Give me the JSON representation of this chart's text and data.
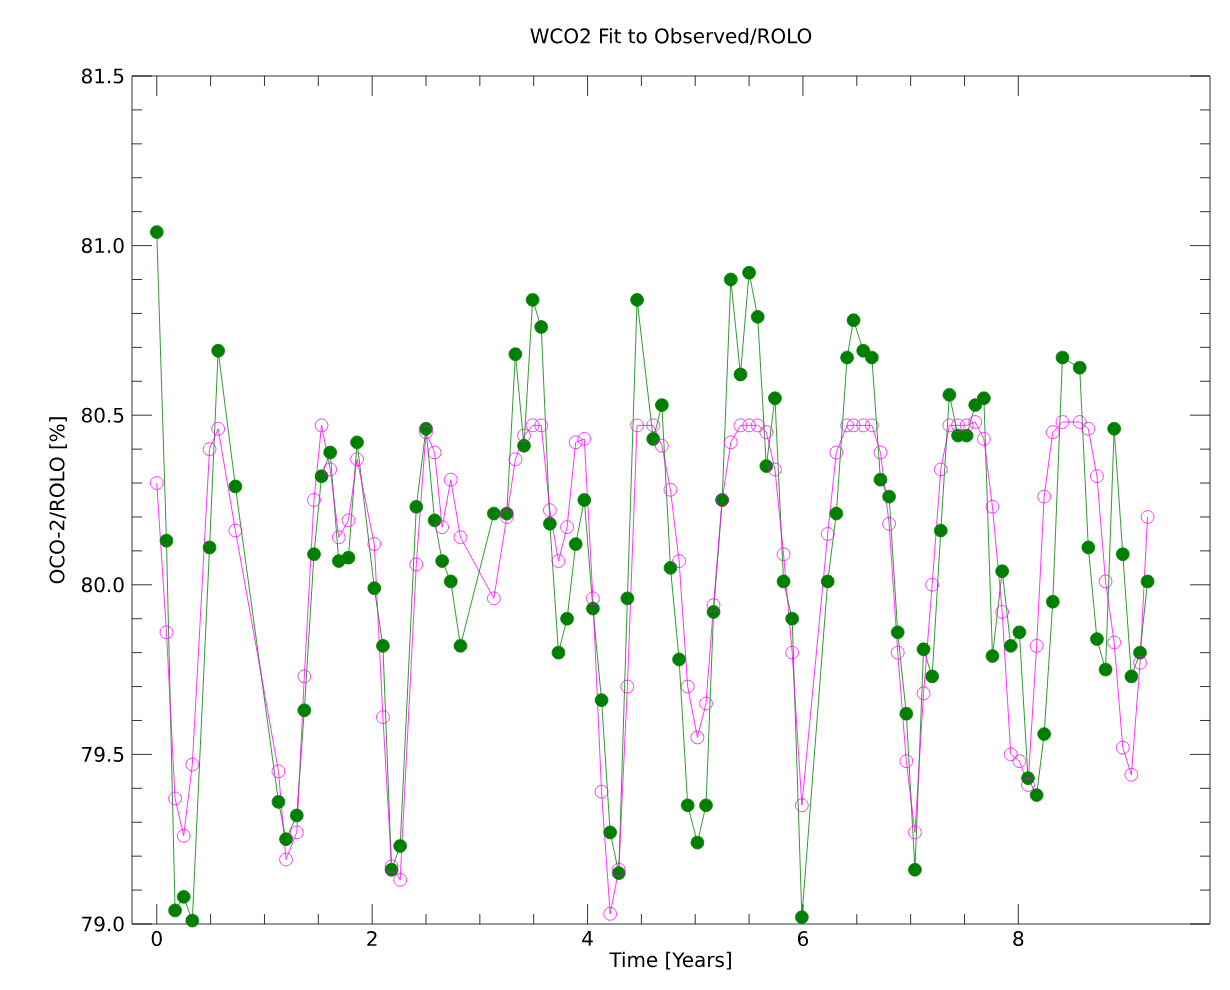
{
  "chart_data": {
    "type": "line",
    "title": "WCO2 Fit to Observed/ROLO",
    "xlabel": "Time [Years]",
    "ylabel": "OCO-2/ROLO [%]",
    "x": [
      0,
      0.09,
      0.17,
      0.25,
      0.33,
      0.49,
      0.57,
      0.73,
      1.13,
      1.2,
      1.3,
      1.37,
      1.46,
      1.53,
      1.61,
      1.69,
      1.78,
      1.86,
      2.02,
      2.1,
      2.18,
      2.26,
      2.41,
      2.5,
      2.58,
      2.65,
      2.73,
      2.82,
      3.13,
      3.25,
      3.33,
      3.41,
      3.49,
      3.57,
      3.65,
      3.73,
      3.81,
      3.89,
      3.97,
      4.05,
      4.13,
      4.21,
      4.29,
      4.37,
      4.46,
      4.61,
      4.69,
      4.77,
      4.85,
      4.93,
      5.02,
      5.1,
      5.17,
      5.25,
      5.33,
      5.42,
      5.5,
      5.58,
      5.66,
      5.74,
      5.82,
      5.9,
      5.99,
      6.23,
      6.31,
      6.41,
      6.47,
      6.56,
      6.64,
      6.72,
      6.8,
      6.88,
      6.96,
      7.04,
      7.12,
      7.2,
      7.28,
      7.36,
      7.44,
      7.52,
      7.6,
      7.68,
      7.76,
      7.85,
      7.93,
      8.01,
      8.09,
      8.17,
      8.24,
      8.32,
      8.41,
      8.57,
      8.65,
      8.73,
      8.81,
      8.89,
      8.97,
      9.05,
      9.13,
      9.2
    ],
    "series": [
      {
        "color": "#007f00",
        "values": [
          81.04,
          80.13,
          79.04,
          79.08,
          79.01,
          80.11,
          80.69,
          80.29,
          79.36,
          79.25,
          79.32,
          79.63,
          80.09,
          80.32,
          80.39,
          80.07,
          80.08,
          80.42,
          79.99,
          79.82,
          79.16,
          79.23,
          80.23,
          80.46,
          80.19,
          80.07,
          80.01,
          79.82,
          80.21,
          80.21,
          80.68,
          80.41,
          80.84,
          80.76,
          80.18,
          79.8,
          79.9,
          80.12,
          80.25,
          79.93,
          79.66,
          79.27,
          79.15,
          79.96,
          80.84,
          80.43,
          80.53,
          80.05,
          79.78,
          79.35,
          79.24,
          79.35,
          79.92,
          80.25,
          80.9,
          80.62,
          80.92,
          80.79,
          80.35,
          80.55,
          80.01,
          79.9,
          79.02,
          80.01,
          80.21,
          80.67,
          80.78,
          80.69,
          80.67,
          80.31,
          80.26,
          79.86,
          79.62,
          79.16,
          79.81,
          79.73,
          80.16,
          80.56,
          80.44,
          80.44,
          80.53,
          80.55,
          79.79,
          80.04,
          79.82,
          79.86,
          79.43,
          79.38,
          79.56,
          79.95,
          80.67,
          80.64,
          80.11,
          79.84,
          79.75,
          80.46,
          80.09,
          79.73,
          79.8,
          80.01
        ]
      },
      {
        "color": "#ff00ff",
        "values": [
          80.3,
          79.86,
          79.37,
          79.26,
          79.47,
          80.4,
          80.46,
          80.16,
          79.45,
          79.19,
          79.27,
          79.73,
          80.25,
          80.47,
          80.34,
          80.14,
          80.19,
          80.37,
          80.12,
          79.61,
          79.17,
          79.13,
          80.06,
          80.45,
          80.39,
          80.17,
          80.31,
          80.14,
          79.96,
          80.2,
          80.37,
          80.44,
          80.47,
          80.47,
          80.22,
          80.07,
          80.17,
          80.42,
          80.43,
          79.96,
          79.39,
          79.03,
          79.16,
          79.7,
          80.47,
          80.47,
          80.41,
          80.28,
          80.07,
          79.7,
          79.55,
          79.65,
          79.94,
          80.25,
          80.42,
          80.47,
          80.47,
          80.47,
          80.45,
          80.34,
          80.09,
          79.8,
          79.35,
          80.15,
          80.39,
          80.47,
          80.47,
          80.47,
          80.47,
          80.39,
          80.18,
          79.8,
          79.48,
          79.27,
          79.68,
          80.0,
          80.34,
          80.47,
          80.47,
          80.47,
          80.48,
          80.43,
          80.23,
          79.92,
          79.5,
          79.48,
          79.41,
          79.82,
          80.26,
          80.45,
          80.48,
          80.48,
          80.46,
          80.32,
          80.01,
          79.83,
          79.52,
          79.44,
          79.77,
          80.2
        ]
      }
    ],
    "xlim": [
      -0.23,
      9.78
    ],
    "xticks": [
      0,
      2,
      4,
      6,
      8
    ],
    "ylim": [
      79.0,
      81.5
    ],
    "yticks": [
      {
        "value": 79.0,
        "label": "79.0"
      },
      {
        "value": 79.5,
        "label": "79.5"
      },
      {
        "value": 80.0,
        "label": "80.0"
      },
      {
        "value": 80.5,
        "label": "80.5"
      },
      {
        "value": 81.0,
        "label": "81.0"
      },
      {
        "value": 81.5,
        "label": "81.5"
      }
    ],
    "grid": false,
    "marker": "circle",
    "line_style": "solid"
  }
}
